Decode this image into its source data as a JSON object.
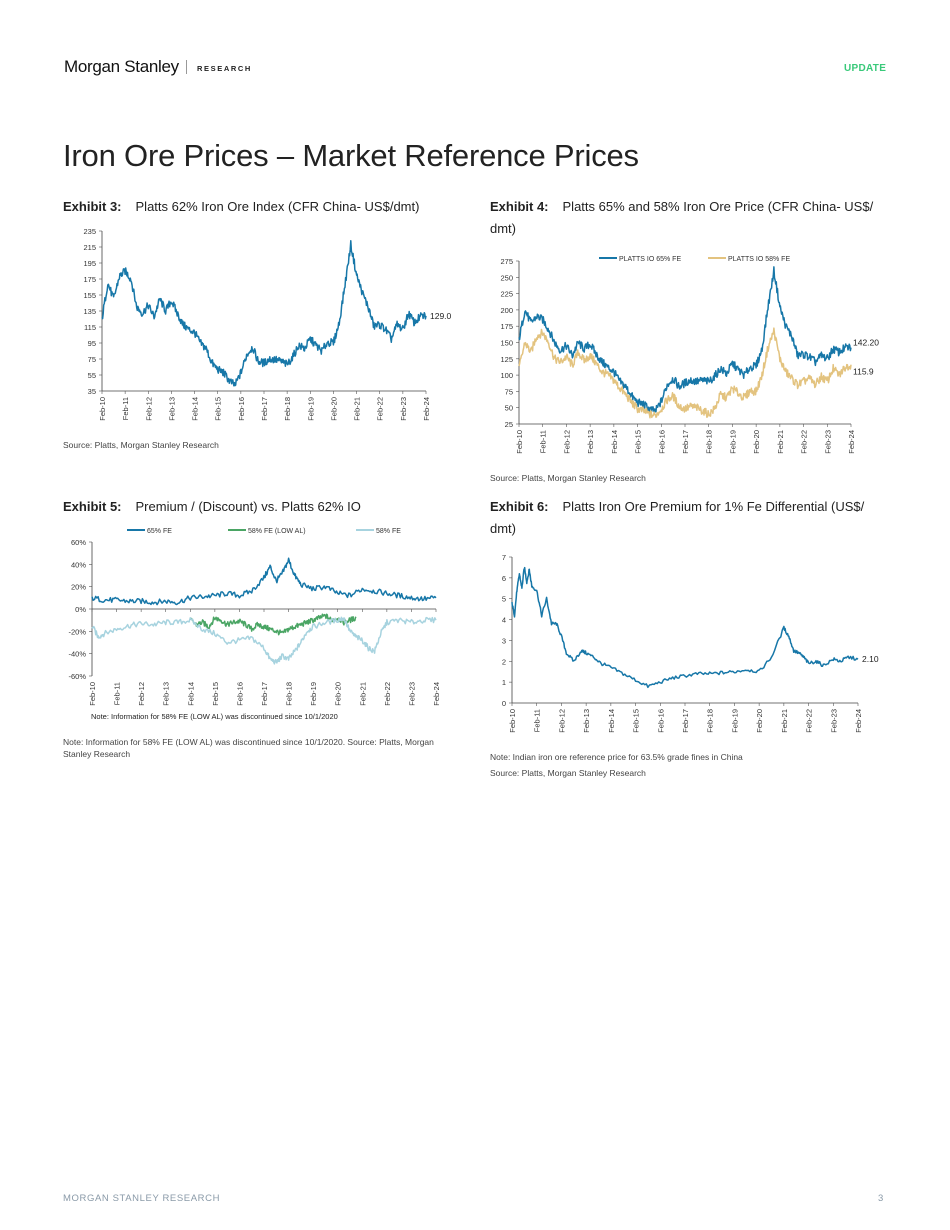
{
  "header": {
    "brand": "Morgan Stanley",
    "section": "RESEARCH",
    "badge": "UPDATE",
    "colors": {
      "accent": "#39c97a",
      "primary_line": "#1777a8",
      "secondary_line": "#e3c37f"
    }
  },
  "page_title": "Iron Ore Prices – Market Reference Prices",
  "exhibits": [
    {
      "label": "Exhibit 3:",
      "title": "Platts 62% Iron Ore Index (CFR China- US$/dmt)",
      "notes": [
        "Source: Platts, Morgan Stanley Research"
      ]
    },
    {
      "label": "Exhibit 4:",
      "title": "Platts 65% and 58% Iron Ore Price (CFR China- US$/ dmt)",
      "notes": [
        "Source: Platts, Morgan Stanley Research"
      ]
    },
    {
      "label": "Exhibit 5:",
      "title": "Premium / (Discount) vs. Platts 62% IO",
      "notes": [
        "Note: Information for 58% FE (LOW AL) was discontinued since 10/1/2020. Source: Platts, Morgan Stanley Research"
      ]
    },
    {
      "label": "Exhibit 6:",
      "title": "Platts Iron Ore Premium for 1% Fe Differential (US$/ dmt)",
      "notes": [
        "Note: Indian iron ore reference price for 63.5% grade fines in China",
        "Source: Platts, Morgan Stanley Research"
      ]
    }
  ],
  "chart_data": [
    {
      "type": "line",
      "title": "Platts 62% Iron Ore Index (CFR China- US$/dmt)",
      "categories": [
        "Feb-10",
        "Feb-11",
        "Feb-12",
        "Feb-13",
        "Feb-14",
        "Feb-15",
        "Feb-16",
        "Feb-17",
        "Feb-18",
        "Feb-19",
        "Feb-20",
        "Feb-21",
        "Feb-22",
        "Feb-23",
        "Feb-24"
      ],
      "y_ticks": [
        "35",
        "55",
        "75",
        "95",
        "115",
        "135",
        "155",
        "175",
        "195",
        "215",
        "235"
      ],
      "ylim": [
        35,
        235
      ],
      "series": [
        {
          "name": "Platts 62% IO",
          "color": "#1777a8",
          "x": [
            0,
            0.25,
            0.5,
            0.75,
            1,
            1.25,
            1.5,
            1.75,
            2,
            2.25,
            2.5,
            2.75,
            3,
            3.25,
            3.5,
            3.75,
            4,
            4.25,
            4.5,
            4.75,
            5,
            5.25,
            5.5,
            5.75,
            6,
            6.25,
            6.5,
            6.75,
            7,
            7.25,
            7.5,
            7.75,
            8,
            8.25,
            8.5,
            8.75,
            9,
            9.25,
            9.5,
            9.75,
            10,
            10.25,
            10.5,
            10.75,
            11,
            11.25,
            11.5,
            11.75,
            12,
            12.25,
            12.5,
            12.75,
            13,
            13.25,
            13.5,
            13.75,
            14
          ],
          "values": [
            125,
            170,
            150,
            178,
            185,
            175,
            140,
            132,
            142,
            128,
            150,
            135,
            148,
            132,
            118,
            112,
            108,
            95,
            88,
            70,
            62,
            58,
            48,
            42,
            58,
            80,
            90,
            72,
            70,
            75,
            74,
            72,
            68,
            78,
            92,
            88,
            100,
            92,
            85,
            96,
            95,
            120,
            168,
            218,
            180,
            158,
            140,
            116,
            118,
            112,
            100,
            118,
            112,
            132,
            120,
            128,
            129
          ]
        }
      ],
      "end_label": "129.0"
    },
    {
      "type": "line",
      "title": "Platts 65% and 58% Iron Ore Price (CFR China- US$/ dmt)",
      "categories": [
        "Feb-10",
        "Feb-11",
        "Feb-12",
        "Feb-13",
        "Feb-14",
        "Feb-15",
        "Feb-16",
        "Feb-17",
        "Feb-18",
        "Feb-19",
        "Feb-20",
        "Feb-21",
        "Feb-22",
        "Feb-23",
        "Feb-24"
      ],
      "y_ticks": [
        "25",
        "50",
        "75",
        "100",
        "125",
        "150",
        "175",
        "200",
        "225",
        "250",
        "275"
      ],
      "ylim": [
        25,
        275
      ],
      "series": [
        {
          "name": "PLATTS IO 65% FE",
          "color": "#1777a8",
          "x": [
            0,
            0.25,
            0.5,
            0.75,
            1,
            1.25,
            1.5,
            1.75,
            2,
            2.25,
            2.5,
            2.75,
            3,
            3.25,
            3.5,
            3.75,
            4,
            4.25,
            4.5,
            4.75,
            5,
            5.25,
            5.5,
            5.75,
            6,
            6.25,
            6.5,
            6.75,
            7,
            7.25,
            7.5,
            7.75,
            8,
            8.25,
            8.5,
            8.75,
            9,
            9.25,
            9.5,
            9.75,
            10,
            10.25,
            10.5,
            10.75,
            11,
            11.25,
            11.5,
            11.75,
            12,
            12.25,
            12.5,
            12.75,
            13,
            13.25,
            13.5,
            13.75,
            14
          ],
          "values": [
            155,
            200,
            180,
            190,
            185,
            170,
            150,
            138,
            145,
            130,
            150,
            140,
            148,
            132,
            120,
            112,
            105,
            90,
            82,
            68,
            58,
            55,
            48,
            44,
            60,
            85,
            95,
            82,
            88,
            92,
            90,
            92,
            90,
            98,
            110,
            102,
            118,
            108,
            100,
            112,
            114,
            140,
            205,
            260,
            205,
            175,
            160,
            130,
            132,
            128,
            120,
            130,
            125,
            140,
            135,
            142,
            142.2
          ]
        },
        {
          "name": "PLATTS IO 58% FE",
          "color": "#e3c37f",
          "x": [
            0,
            0.25,
            0.5,
            0.75,
            1,
            1.25,
            1.5,
            1.75,
            2,
            2.25,
            2.5,
            2.75,
            3,
            3.25,
            3.5,
            3.75,
            4,
            4.25,
            4.5,
            4.75,
            5,
            5.25,
            5.5,
            5.75,
            6,
            6.25,
            6.5,
            6.75,
            7,
            7.25,
            7.5,
            7.75,
            8,
            8.25,
            8.5,
            8.75,
            9,
            9.25,
            9.5,
            9.75,
            10,
            10.25,
            10.5,
            10.75,
            11,
            11.25,
            11.5,
            11.75,
            12,
            12.25,
            12.5,
            12.75,
            13,
            13.25,
            13.5,
            13.75,
            14
          ],
          "values": [
            110,
            150,
            135,
            160,
            165,
            150,
            125,
            120,
            128,
            115,
            135,
            122,
            130,
            118,
            105,
            100,
            92,
            80,
            70,
            58,
            48,
            45,
            40,
            38,
            48,
            62,
            68,
            52,
            48,
            52,
            50,
            45,
            40,
            48,
            70,
            65,
            80,
            72,
            65,
            76,
            75,
            100,
            142,
            168,
            125,
            105,
            95,
            85,
            90,
            95,
            85,
            98,
            90,
            110,
            100,
            112,
            115.9
          ]
        }
      ],
      "end_labels": [
        "142.20",
        "115.9"
      ]
    },
    {
      "type": "line",
      "title": "Premium / (Discount) vs. Platts 62% IO",
      "categories": [
        "Feb-10",
        "Feb-11",
        "Feb-12",
        "Feb-13",
        "Feb-14",
        "Feb-15",
        "Feb-16",
        "Feb-17",
        "Feb-18",
        "Feb-19",
        "Feb-20",
        "Feb-21",
        "Feb-22",
        "Feb-23",
        "Feb-24"
      ],
      "y_ticks": [
        "-60%",
        "-40%",
        "-20%",
        "0%",
        "20%",
        "40%",
        "60%"
      ],
      "ylim": [
        -60,
        60
      ],
      "series": [
        {
          "name": "65% FE",
          "color": "#1777a8",
          "x": [
            0,
            0.5,
            1,
            1.5,
            2,
            2.5,
            3,
            3.5,
            4,
            4.5,
            5,
            5.5,
            6,
            6.5,
            7,
            7.25,
            7.5,
            7.75,
            8,
            8.25,
            8.5,
            9,
            9.5,
            10,
            10.5,
            11,
            11.5,
            12,
            12.5,
            13,
            13.5,
            14
          ],
          "values": [
            10,
            8,
            8,
            7,
            7,
            6,
            7,
            6,
            10,
            11,
            12,
            14,
            12,
            16,
            28,
            38,
            25,
            32,
            44,
            30,
            22,
            18,
            20,
            14,
            12,
            18,
            16,
            14,
            12,
            10,
            9,
            10
          ]
        },
        {
          "name": "58% FE (LOW AL)",
          "color": "#4aa564",
          "x": [
            4,
            4.25,
            4.5,
            4.75,
            5,
            5.25,
            5.5,
            5.75,
            6,
            6.25,
            6.5,
            6.75,
            7,
            7.25,
            7.5,
            7.75,
            8,
            8.25,
            8.5,
            8.75,
            9,
            9.25,
            9.5,
            9.75,
            10,
            10.25,
            10.5,
            10.75
          ],
          "values": [
            -10,
            -14,
            -12,
            -16,
            -8,
            -10,
            -14,
            -12,
            -11,
            -14,
            -18,
            -14,
            -16,
            -18,
            -20,
            -22,
            -18,
            -16,
            -14,
            -12,
            -10,
            -8,
            -6,
            -10,
            -8,
            -12,
            -10,
            -8
          ]
        },
        {
          "name": "58% FE",
          "color": "#a7d3df",
          "x": [
            0,
            0.25,
            0.5,
            1,
            1.5,
            2,
            2.5,
            3,
            3.5,
            4,
            4.5,
            5,
            5.5,
            6,
            6.5,
            7,
            7.25,
            7.5,
            7.75,
            8,
            8.25,
            8.5,
            8.75,
            9,
            9.5,
            10,
            10.25,
            10.5,
            10.75,
            11,
            11.25,
            11.5,
            11.75,
            12,
            12.5,
            13,
            13.5,
            14
          ],
          "values": [
            -15,
            -25,
            -22,
            -18,
            -15,
            -13,
            -14,
            -12,
            -12,
            -10,
            -18,
            -22,
            -30,
            -28,
            -26,
            -35,
            -45,
            -48,
            -42,
            -45,
            -38,
            -30,
            -20,
            -16,
            -12,
            -10,
            -8,
            -20,
            -25,
            -28,
            -35,
            -38,
            -22,
            -12,
            -10,
            -12,
            -10,
            -10
          ]
        }
      ],
      "legend": [
        "65% FE",
        "58% FE (LOW AL)",
        "58% FE"
      ],
      "annotation": "Note: Information for 58% FE (LOW AL) was discontinued since 10/1/2020"
    },
    {
      "type": "line",
      "title": "Platts Iron Ore Premium for 1% Fe Differential (US$/ dmt)",
      "categories": [
        "Feb-10",
        "Feb-11",
        "Feb-12",
        "Feb-13",
        "Feb-14",
        "Feb-15",
        "Feb-16",
        "Feb-17",
        "Feb-18",
        "Feb-19",
        "Feb-20",
        "Feb-21",
        "Feb-22",
        "Feb-23",
        "Feb-24"
      ],
      "y_ticks": [
        "0",
        "1",
        "2",
        "3",
        "4",
        "5",
        "6",
        "7"
      ],
      "ylim": [
        0,
        7
      ],
      "series": [
        {
          "name": "1% Fe Differential",
          "color": "#1777a8",
          "x": [
            0,
            0.1,
            0.2,
            0.3,
            0.4,
            0.5,
            0.6,
            0.7,
            0.8,
            1,
            1.2,
            1.4,
            1.6,
            1.8,
            2,
            2.2,
            2.5,
            2.8,
            3,
            3.3,
            3.6,
            4,
            4.5,
            5,
            5.5,
            6,
            6.5,
            7,
            7.5,
            8,
            8.5,
            9,
            9.5,
            10,
            10.5,
            11,
            11.2,
            11.4,
            11.6,
            11.8,
            12,
            12.3,
            12.6,
            13,
            13.3,
            13.6,
            14
          ],
          "values": [
            4.8,
            4.2,
            5.4,
            6.2,
            5.5,
            6.5,
            5.8,
            6.4,
            5.6,
            5.4,
            4.2,
            5.0,
            3.8,
            3.8,
            3.2,
            2.4,
            2.0,
            2.5,
            2.4,
            2.2,
            1.9,
            1.7,
            1.4,
            1.1,
            0.8,
            1.0,
            1.2,
            1.3,
            1.4,
            1.4,
            1.45,
            1.5,
            1.6,
            1.5,
            2.2,
            3.6,
            3.2,
            2.5,
            2.4,
            2.2,
            1.9,
            2.0,
            1.8,
            2.1,
            2.0,
            2.2,
            2.1
          ]
        }
      ],
      "end_label": "2.10"
    }
  ],
  "footer": {
    "left": "MORGAN STANLEY RESEARCH",
    "page": "3"
  }
}
